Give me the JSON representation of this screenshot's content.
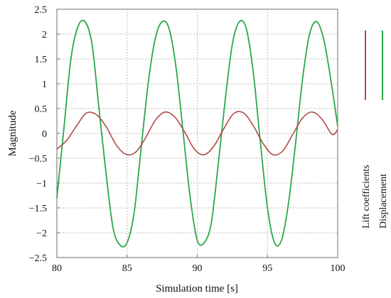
{
  "chart_data": {
    "type": "line",
    "title": "",
    "xlabel": "Simulation time [s]",
    "ylabel": "Magnitude",
    "xlim": [
      80,
      100
    ],
    "ylim": [
      -2.5,
      2.5
    ],
    "xticks": [
      80,
      85,
      90,
      95,
      100
    ],
    "xtick_labels": [
      "80",
      "85",
      "90",
      "95",
      "100"
    ],
    "yticks": [
      2.5,
      2,
      1.5,
      1,
      0.5,
      0,
      -0.5,
      -1,
      -1.5,
      -2,
      -2.5
    ],
    "ytick_labels": [
      "2.5",
      "2",
      "1.5",
      "1",
      "0.5",
      "0",
      "−0.5",
      "−1",
      "−1.5",
      "−2",
      "−2.5"
    ],
    "grid": true,
    "legend_position": "right, vertical",
    "series": [
      {
        "name": "Lift coefficients",
        "color": "#b04a4a",
        "x": [
          80,
          80.7,
          81.4,
          82.1,
          82.8,
          83.5,
          84.2,
          84.9,
          85.6,
          86.3,
          87.0,
          87.7,
          88.4,
          89.1,
          89.8,
          90.5,
          91.2,
          91.9,
          92.6,
          93.3,
          94.0,
          94.7,
          95.4,
          96.1,
          96.8,
          97.5,
          98.2,
          98.9,
          99.6,
          100
        ],
        "y": [
          -0.32,
          -0.14,
          0.15,
          0.41,
          0.38,
          0.14,
          -0.22,
          -0.42,
          -0.38,
          -0.1,
          0.26,
          0.43,
          0.33,
          0.03,
          -0.32,
          -0.43,
          -0.25,
          0.1,
          0.4,
          0.41,
          0.15,
          -0.21,
          -0.43,
          -0.35,
          -0.02,
          0.31,
          0.43,
          0.28,
          -0.02,
          0.08
        ]
      },
      {
        "name": "Displacement",
        "color": "#2aa84a",
        "x": [
          80,
          80.5,
          81.0,
          81.5,
          82.0,
          82.5,
          83.0,
          83.5,
          84.0,
          84.5,
          85.0,
          85.5,
          86.0,
          86.5,
          87.0,
          87.5,
          88.0,
          88.5,
          89.0,
          89.5,
          90.0,
          90.5,
          91.0,
          91.5,
          92.0,
          92.5,
          93.0,
          93.5,
          94.0,
          94.5,
          95.0,
          95.5,
          96.0,
          96.5,
          97.0,
          97.5,
          98.0,
          98.5,
          99.0,
          99.5,
          100
        ],
        "y": [
          -1.3,
          0.1,
          1.5,
          2.15,
          2.25,
          1.8,
          0.5,
          -0.8,
          -1.9,
          -2.25,
          -2.2,
          -1.6,
          -0.3,
          1.0,
          1.9,
          2.25,
          2.1,
          1.3,
          0.0,
          -1.3,
          -2.15,
          -2.2,
          -1.8,
          -0.6,
          0.7,
          1.8,
          2.25,
          2.1,
          1.2,
          -0.2,
          -1.5,
          -2.2,
          -2.15,
          -1.4,
          -0.2,
          1.1,
          2.0,
          2.25,
          1.9,
          1.1,
          0.15
        ]
      }
    ]
  }
}
